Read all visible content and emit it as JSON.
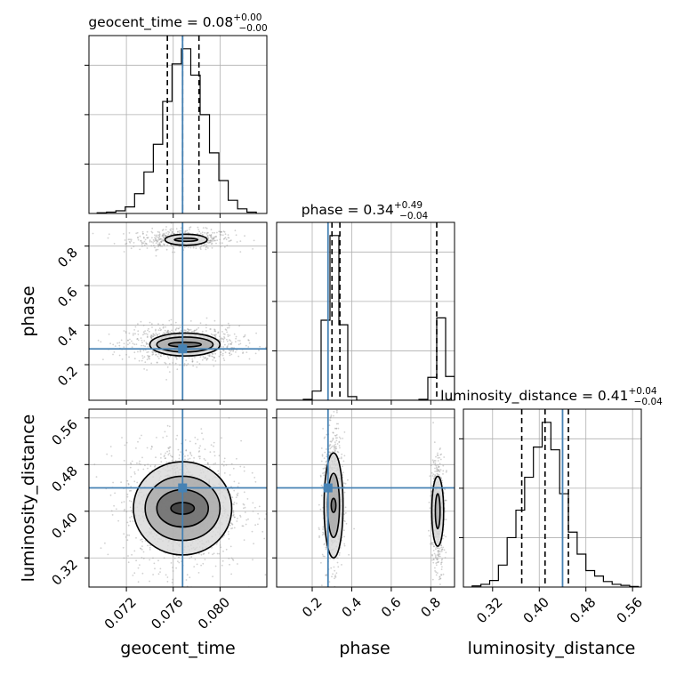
{
  "chart_data": {
    "type": "corner",
    "parameters": [
      "geocent_time",
      "phase",
      "luminosity_distance"
    ],
    "titles": [
      {
        "param": "geocent_time",
        "median": "0.08",
        "plus": "+0.00",
        "minus": "−0.00"
      },
      {
        "param": "phase",
        "median": "0.34",
        "plus": "+0.49",
        "minus": "−0.04"
      },
      {
        "param": "luminosity_distance",
        "median": "0.41",
        "plus": "+0.04",
        "minus": "−0.04"
      }
    ],
    "axes": {
      "geocent_time": {
        "range": [
          0.0688,
          0.084
        ],
        "ticks": [
          "0.072",
          "0.076",
          "0.080"
        ],
        "tick_values": [
          0.072,
          0.076,
          0.08
        ]
      },
      "phase": {
        "range": [
          0.02,
          0.92
        ],
        "ticks": [
          "0.2",
          "0.4",
          "0.6",
          "0.8"
        ],
        "tick_values": [
          0.2,
          0.4,
          0.6,
          0.8
        ]
      },
      "luminosity_distance": {
        "range": [
          0.27,
          0.575
        ],
        "ticks": [
          "0.32",
          "0.40",
          "0.48",
          "0.56"
        ],
        "tick_values": [
          0.32,
          0.4,
          0.48,
          0.56
        ]
      }
    },
    "truths": {
      "geocent_time": 0.0768,
      "phase": 0.28,
      "luminosity_distance": 0.44
    },
    "colors": {
      "truth": "#4682b4",
      "hist": "#000000",
      "points": "#9a9a9a",
      "grid": "#b0b0b0"
    },
    "histograms": {
      "geocent_time": {
        "bin_edges": [
          0.0695,
          0.0703,
          0.0711,
          0.0719,
          0.0727,
          0.0735,
          0.0743,
          0.0751,
          0.0759,
          0.0767,
          0.0775,
          0.0783,
          0.0791,
          0.0799,
          0.0807,
          0.0815,
          0.0823,
          0.0831
        ],
        "counts": [
          1,
          2,
          4,
          10,
          30,
          63,
          105,
          170,
          227,
          250,
          210,
          150,
          92,
          50,
          20,
          7,
          2
        ],
        "quantiles": [
          0.0755,
          0.0768,
          0.0782
        ]
      },
      "phase": {
        "bin_edges": [
          0.02,
          0.065,
          0.11,
          0.155,
          0.2,
          0.245,
          0.29,
          0.335,
          0.38,
          0.425,
          0.47,
          0.515,
          0.56,
          0.605,
          0.65,
          0.695,
          0.74,
          0.785,
          0.83,
          0.875,
          0.92
        ],
        "counts": [
          0,
          0,
          0,
          2,
          20,
          175,
          360,
          165,
          8,
          0,
          0,
          0,
          0,
          0,
          0,
          0,
          2,
          50,
          180,
          52
        ],
        "quantiles": [
          0.3,
          0.34,
          0.83
        ]
      },
      "luminosity_distance": {
        "bin_edges": [
          0.285,
          0.3,
          0.315,
          0.33,
          0.345,
          0.36,
          0.375,
          0.39,
          0.405,
          0.42,
          0.435,
          0.45,
          0.465,
          0.48,
          0.495,
          0.51,
          0.525,
          0.54,
          0.555,
          0.57
        ],
        "counts": [
          2,
          5,
          12,
          40,
          90,
          140,
          200,
          255,
          300,
          250,
          170,
          100,
          60,
          30,
          20,
          10,
          5,
          3,
          1
        ],
        "quantiles": [
          0.37,
          0.41,
          0.45
        ]
      }
    },
    "contours": {
      "phase_vs_geocent_time": [
        {
          "cx": 0.0771,
          "cy": 0.832,
          "sx": [
            0.001,
            0.0018
          ],
          "sy": [
            0.008,
            0.028
          ]
        },
        {
          "cx": 0.077,
          "cy": 0.302,
          "sx": [
            0.0014,
            0.0024,
            0.003
          ],
          "sy": [
            0.012,
            0.038,
            0.058
          ]
        }
      ],
      "luminosity_distance_vs_geocent_time": [
        {
          "cx": 0.0768,
          "cy": 0.405,
          "sx": [
            0.001,
            0.0022,
            0.0032,
            0.0042
          ],
          "sy": [
            0.01,
            0.032,
            0.055,
            0.08
          ]
        }
      ],
      "luminosity_distance_vs_phase": [
        {
          "cx": 0.308,
          "cy": 0.41,
          "sx": [
            0.012,
            0.03,
            0.048
          ],
          "sy": [
            0.012,
            0.055,
            0.09
          ]
        },
        {
          "cx": 0.835,
          "cy": 0.4,
          "sx": [
            0.012,
            0.03
          ],
          "sy": [
            0.03,
            0.06
          ]
        }
      ]
    },
    "point_clouds": {
      "phase_vs_geocent_time": [
        {
          "cx": 0.0768,
          "cy": 0.835,
          "sx": 0.0022,
          "sy": 0.025,
          "n": 500
        },
        {
          "cx": 0.0768,
          "cy": 0.305,
          "sx": 0.0024,
          "sy": 0.045,
          "n": 900
        }
      ],
      "luminosity_distance_vs_geocent_time": [
        {
          "cx": 0.0768,
          "cy": 0.41,
          "sx": 0.0025,
          "sy": 0.055,
          "n": 1300
        }
      ],
      "luminosity_distance_vs_phase": [
        {
          "cx": 0.305,
          "cy": 0.42,
          "sx": 0.025,
          "sy": 0.055,
          "n": 900
        },
        {
          "cx": 0.835,
          "cy": 0.4,
          "sx": 0.018,
          "sy": 0.05,
          "n": 500
        }
      ]
    }
  }
}
